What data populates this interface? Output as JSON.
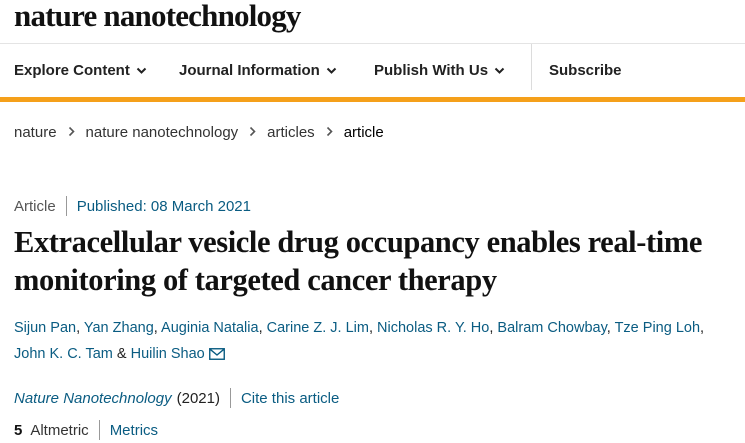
{
  "site": {
    "logo": "nature nanotechnology"
  },
  "nav": {
    "items": [
      {
        "label": "Explore Content"
      },
      {
        "label": "Journal Information"
      },
      {
        "label": "Publish With Us"
      },
      {
        "label": "Subscribe"
      }
    ]
  },
  "breadcrumb": [
    "nature",
    "nature nanotechnology",
    "articles",
    "article"
  ],
  "article": {
    "type": "Article",
    "published": "Published: 08 March 2021",
    "title": "Extracellular vesicle drug occupancy enables real-time monitoring of targeted cancer therapy",
    "authors": [
      "Sijun Pan",
      "Yan Zhang",
      "Auginia Natalia",
      "Carine Z. J. Lim",
      "Nicholas R. Y. Ho",
      "Balram Chowbay",
      "Tze Ping Loh",
      "John K. C. Tam",
      "Huilin Shao"
    ],
    "comma": ",",
    "and": "&"
  },
  "citation": {
    "journal": "Nature Nanotechnology",
    "year": "(2021)",
    "cite": "Cite this article"
  },
  "metrics": {
    "count": "5",
    "altmetric": "Altmetric",
    "metrics_link": "Metrics"
  },
  "colors": {
    "accent": "#f5a01a",
    "link": "#0a5c82"
  },
  "icons": {
    "chevron": "chevron-down-icon",
    "mail": "mail-icon"
  }
}
